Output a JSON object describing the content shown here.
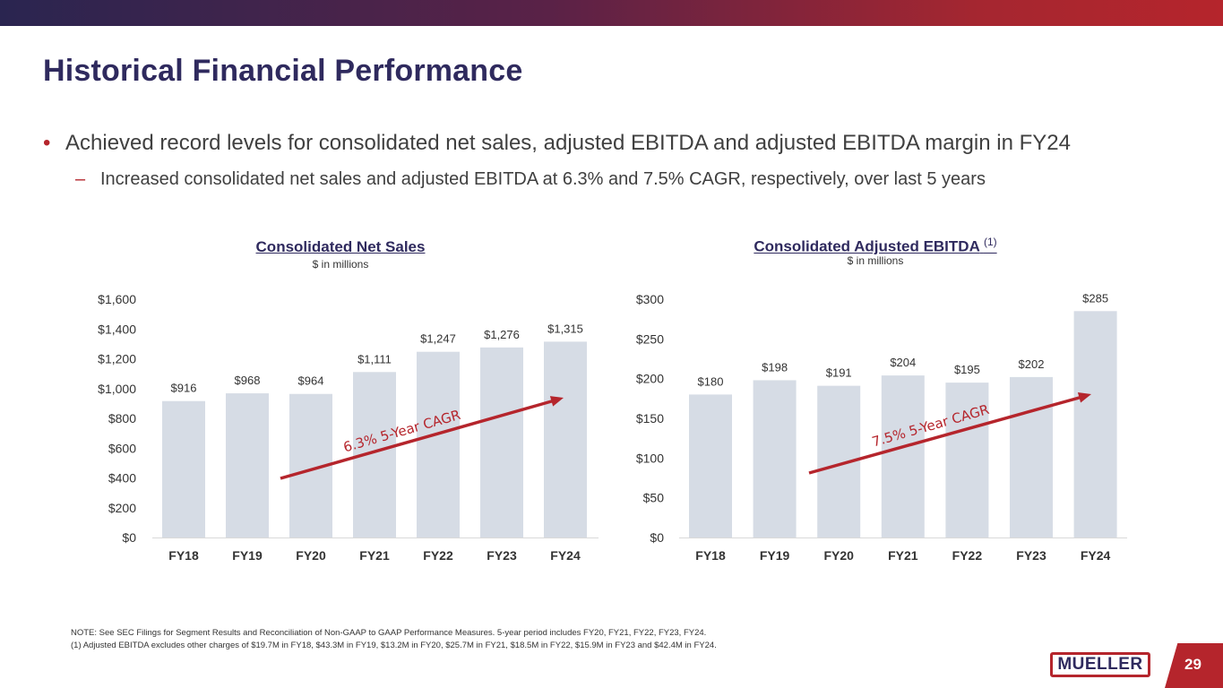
{
  "page": {
    "title": "Historical Financial Performance",
    "bullet": "Achieved record levels for consolidated net sales, adjusted EBITDA and adjusted EBITDA margin in FY24",
    "sub_bullet": "Increased consolidated net sales and adjusted EBITDA at 6.3% and 7.5% CAGR, respectively, over last 5 years",
    "bullet_marker": "•",
    "sub_bullet_marker": "–",
    "note_line1": "NOTE:  See SEC Filings for Segment Results and Reconciliation of Non-GAAP to GAAP Performance Measures. 5-year period includes FY20, FY21, FY22, FY23, FY24.",
    "note_line2": "(1)  Adjusted EBITDA excludes other charges of $19.7M in FY18, $43.3M in FY19, $13.2M in FY20, $25.7M in FY21, $18.5M in FY22, $15.9M in FY23 and $42.4M in FY24.",
    "logo_text": "MUELLER",
    "page_number": "29"
  },
  "colors": {
    "navy": "#2f2a5e",
    "red": "#b5252c",
    "bar": "#d6dce5"
  },
  "chart_data": [
    {
      "type": "bar",
      "title": "Consolidated Net Sales",
      "title_sup": "",
      "subtitle": "$ in millions",
      "categories": [
        "FY18",
        "FY19",
        "FY20",
        "FY21",
        "FY22",
        "FY23",
        "FY24"
      ],
      "values": [
        916,
        968,
        964,
        1111,
        1247,
        1276,
        1315
      ],
      "value_labels": [
        "$916",
        "$968",
        "$964",
        "$1,111",
        "$1,247",
        "$1,276",
        "$1,315"
      ],
      "ylim": [
        0,
        1600
      ],
      "yticks": [
        0,
        200,
        400,
        600,
        800,
        1000,
        1200,
        1400,
        1600
      ],
      "ytick_labels": [
        "$0",
        "$200",
        "$400",
        "$600",
        "$800",
        "$1,000",
        "$1,200",
        "$1,400",
        "$1,600"
      ],
      "annotation": "6.3% 5-Year CAGR",
      "grid": false
    },
    {
      "type": "bar",
      "title": "Consolidated Adjusted EBITDA",
      "title_sup": "(1)",
      "subtitle": "$ in millions",
      "categories": [
        "FY18",
        "FY19",
        "FY20",
        "FY21",
        "FY22",
        "FY23",
        "FY24"
      ],
      "values": [
        180,
        198,
        191,
        204,
        195,
        202,
        285
      ],
      "value_labels": [
        "$180",
        "$198",
        "$191",
        "$204",
        "$195",
        "$202",
        "$285"
      ],
      "ylim": [
        0,
        300
      ],
      "yticks": [
        0,
        50,
        100,
        150,
        200,
        250,
        300
      ],
      "ytick_labels": [
        "$0",
        "$50",
        "$100",
        "$150",
        "$200",
        "$250",
        "$300"
      ],
      "annotation": "7.5% 5-Year CAGR",
      "grid": false
    }
  ]
}
